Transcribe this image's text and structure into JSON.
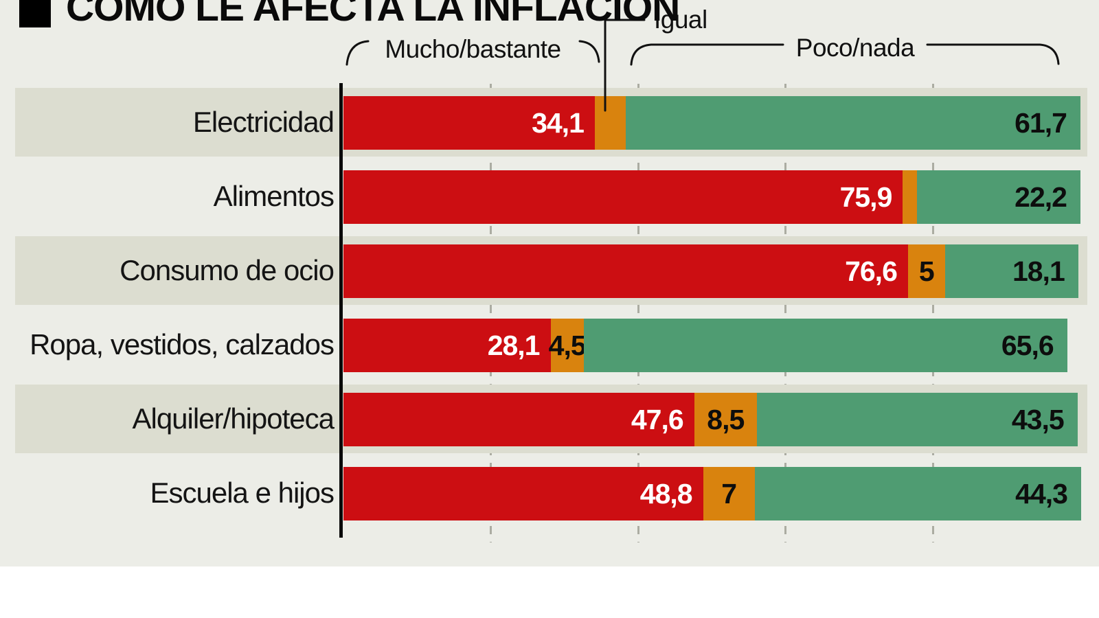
{
  "title": {
    "text": "CÓMO LE AFECTA LA INFLACIÓN"
  },
  "legend": {
    "mucho": "Mucho/bastante",
    "igual": "Igual",
    "poco": "Poco/nada"
  },
  "colors": {
    "mucho": "#CC0E12",
    "igual": "#D9830E",
    "poco": "#4F9C72",
    "band": "#DCDDD0",
    "canvas_bg": "#ECEDE7",
    "grid": "#ABACA2",
    "axis": "#0A0A0A"
  },
  "chart_data": {
    "type": "bar",
    "stacked": true,
    "orientation": "horizontal",
    "title": "CÓMO LE AFECTA LA INFLACIÓN",
    "unit": "percent",
    "xlim": [
      0,
      100
    ],
    "grid": "dashed vertical every 20%",
    "legend_position": "top",
    "categories": [
      "Electricidad",
      "Alimentos",
      "Consumo de ocio",
      "Ropa, vestidos, calzados",
      "Alquiler/hipoteca",
      "Escuela e hijos"
    ],
    "series": [
      {
        "name": "Mucho/bastante",
        "color": "#CC0E12",
        "values": [
          34.1,
          75.9,
          76.6,
          28.1,
          47.6,
          48.8
        ],
        "labels": [
          "34,1",
          "75,9",
          "76,6",
          "28,1",
          "47,6",
          "48,8"
        ]
      },
      {
        "name": "Igual",
        "color": "#D9830E",
        "values": [
          4.2,
          1.9,
          5,
          4.5,
          8.5,
          7
        ],
        "labels": [
          null,
          null,
          "5",
          "4,5",
          "8,5",
          "7"
        ]
      },
      {
        "name": "Poco/nada",
        "color": "#4F9C72",
        "values": [
          61.7,
          22.2,
          18.1,
          65.6,
          43.5,
          44.3
        ],
        "labels": [
          "61,7",
          "22,2",
          "18,1",
          "65,6",
          "43,5",
          "44,3"
        ]
      }
    ],
    "banded_rows": [
      0,
      2,
      4
    ],
    "gridlines_percent": [
      20,
      40,
      60,
      80
    ]
  }
}
